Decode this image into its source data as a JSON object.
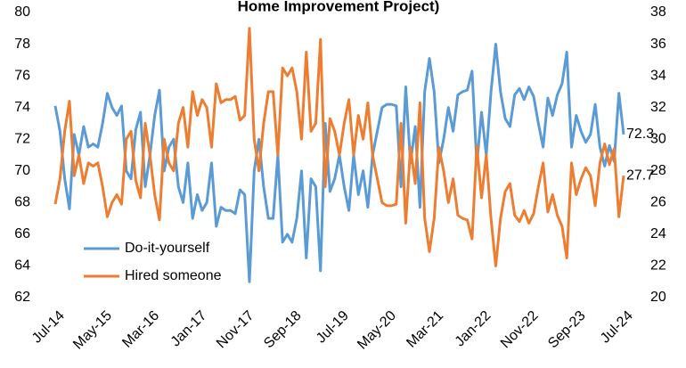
{
  "chart_data": {
    "type": "line",
    "title": "Home Improvement Project)",
    "categories": [
      "Jul-14",
      null,
      null,
      null,
      null,
      null,
      null,
      null,
      null,
      null,
      "May-15",
      null,
      null,
      null,
      null,
      null,
      null,
      null,
      null,
      null,
      "Mar-16",
      null,
      null,
      null,
      null,
      null,
      null,
      null,
      null,
      null,
      "Jan-17",
      null,
      null,
      null,
      null,
      null,
      null,
      null,
      null,
      null,
      "Nov-17",
      null,
      null,
      null,
      null,
      null,
      null,
      null,
      null,
      null,
      "Sep-18",
      null,
      null,
      null,
      null,
      null,
      null,
      null,
      null,
      null,
      "Jul-19",
      null,
      null,
      null,
      null,
      null,
      null,
      null,
      null,
      null,
      "May-20",
      null,
      null,
      null,
      null,
      null,
      null,
      null,
      null,
      null,
      "Mar-21",
      null,
      null,
      null,
      null,
      null,
      null,
      null,
      null,
      null,
      "Jan-22",
      null,
      null,
      null,
      null,
      null,
      null,
      null,
      null,
      null,
      "Nov-22",
      null,
      null,
      null,
      null,
      null,
      null,
      null,
      null,
      null,
      "Sep-23",
      null,
      null,
      null,
      null,
      null,
      null,
      null,
      null,
      null,
      "Jul-24"
    ],
    "series": [
      {
        "name": "Do-it-yourself",
        "color": "#5b9bd5",
        "axis": "y",
        "values": [
          74.1,
          72.5,
          69.5,
          67.6,
          72.3,
          71,
          72.8,
          71.5,
          71.7,
          71.5,
          73,
          74.9,
          74,
          73.5,
          74.1,
          70,
          69.5,
          72.6,
          73.7,
          69,
          71,
          73.5,
          75.1,
          70,
          71.5,
          72,
          69,
          68,
          70.5,
          67,
          68.5,
          67.5,
          68,
          70.5,
          66.5,
          67.7,
          67.5,
          67.5,
          67.3,
          68.8,
          68.5,
          63,
          70,
          72,
          69,
          67,
          67,
          71,
          65.5,
          66,
          65.5,
          67,
          70,
          64.5,
          69.5,
          69,
          63.7,
          73,
          68.7,
          69.5,
          71,
          69,
          67.5,
          71,
          68.5,
          70,
          67.7,
          71,
          72.5,
          74,
          74.2,
          74.2,
          74.1,
          69,
          75.3,
          70.5,
          72.8,
          67.7,
          75,
          77.1,
          75,
          70.5,
          72,
          74,
          72.5,
          74.8,
          75,
          75.1,
          76.3,
          70.4,
          73.7,
          71,
          75,
          78,
          75,
          73.3,
          72.8,
          74.8,
          75.2,
          74.5,
          75.3,
          74.7,
          73,
          71.5,
          74.6,
          73.5,
          74.8,
          75.5,
          77.5,
          71.5,
          73.5,
          72.5,
          71.8,
          72.3,
          74.2,
          71.5,
          70.3,
          71.6,
          70.6,
          74.9,
          72.3
        ]
      },
      {
        "name": "Hired someone",
        "color": "#ed7d31",
        "axis": "y2",
        "values": [
          25.9,
          27.5,
          30.5,
          32.4,
          27.7,
          29,
          27.2,
          28.5,
          28.3,
          28.5,
          27,
          25.1,
          26,
          26.5,
          25.9,
          30,
          30.5,
          27.4,
          26.3,
          31,
          29,
          26.5,
          24.9,
          30,
          28.5,
          28,
          31,
          32,
          29.5,
          33,
          31.5,
          32.5,
          32,
          29.5,
          33.5,
          32.3,
          32.5,
          32.5,
          32.7,
          31.2,
          31.5,
          37,
          30,
          28,
          31,
          33,
          33,
          29,
          34.5,
          34,
          34.5,
          33,
          30,
          35.5,
          30.5,
          31,
          36.3,
          27,
          31.3,
          30.5,
          29,
          31,
          32.5,
          29,
          31.5,
          30,
          32.3,
          29,
          27.5,
          26,
          25.8,
          25.8,
          25.9,
          31,
          24.7,
          29.5,
          27.2,
          32.3,
          25,
          22.9,
          25,
          29.5,
          28,
          26,
          27.5,
          25.2,
          25,
          24.9,
          23.7,
          29.6,
          26.3,
          29,
          25,
          22,
          25,
          26.7,
          27.2,
          25.2,
          24.8,
          25.5,
          24.7,
          25.3,
          27,
          28.5,
          25.4,
          26.5,
          25.2,
          24.5,
          22.5,
          28.5,
          26.5,
          27.5,
          28.2,
          27.7,
          25.8,
          28.5,
          29.7,
          28.4,
          29.4,
          25.1,
          27.7
        ]
      }
    ],
    "ylim": [
      62,
      80
    ],
    "yticks": [
      62,
      64,
      66,
      68,
      70,
      72,
      74,
      76,
      78,
      80
    ],
    "y2lim": [
      20,
      38
    ],
    "y2ticks": [
      20,
      22,
      24,
      26,
      28,
      30,
      32,
      34,
      36,
      38
    ],
    "legend": "lower left",
    "grid": false
  }
}
